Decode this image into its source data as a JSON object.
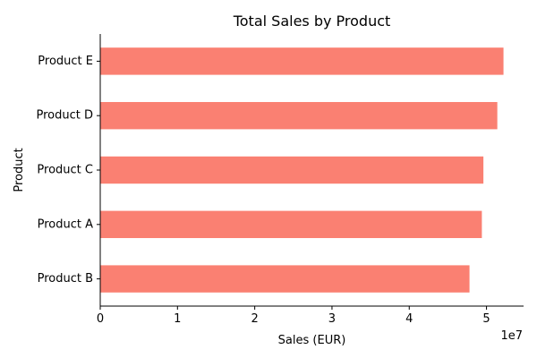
{
  "chart_data": {
    "type": "bar",
    "orientation": "horizontal",
    "title": "Total Sales by Product",
    "xlabel": "Sales (EUR)",
    "ylabel": "Product",
    "x_scale_label": "1e7",
    "categories": [
      "Product B",
      "Product A",
      "Product C",
      "Product D",
      "Product E"
    ],
    "values": [
      47800000,
      49400000,
      49600000,
      51400000,
      52200000
    ],
    "xlim": [
      0,
      54800000
    ],
    "xticks": [
      0,
      10000000,
      20000000,
      30000000,
      40000000,
      50000000
    ],
    "xtick_labels": [
      "0",
      "1",
      "2",
      "3",
      "4",
      "5"
    ],
    "grid": false,
    "bar_color": "#fa8072"
  }
}
